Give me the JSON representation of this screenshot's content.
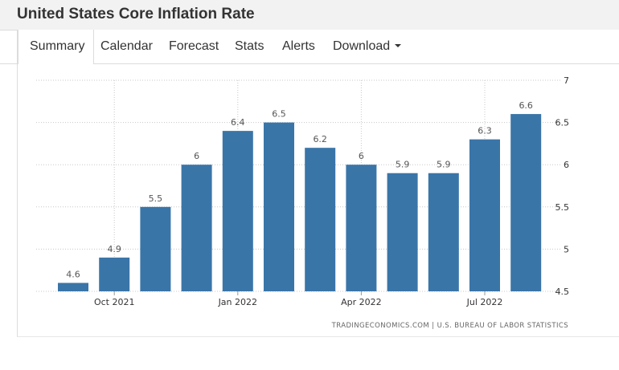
{
  "header": {
    "title": "United States Core Inflation Rate"
  },
  "tabs": [
    {
      "label": "Summary",
      "active": true
    },
    {
      "label": "Calendar",
      "active": false
    },
    {
      "label": "Forecast",
      "active": false
    },
    {
      "label": "Stats",
      "active": false
    },
    {
      "label": "Alerts",
      "active": false
    },
    {
      "label": "Download",
      "active": false,
      "has_dropdown": true
    }
  ],
  "source": "TRADINGECONOMICS.COM  |  U.S. BUREAU OF LABOR STATISTICS",
  "colors": {
    "bar": "#3a75a8",
    "grid": "#c8c8c8",
    "label": "#555555"
  },
  "chart_data": {
    "type": "bar",
    "categories": [
      "Sep 2021",
      "Oct 2021",
      "Nov 2021",
      "Dec 2021",
      "Jan 2022",
      "Feb 2022",
      "Mar 2022",
      "Apr 2022",
      "May 2022",
      "Jun 2022",
      "Jul 2022",
      "Aug 2022"
    ],
    "values": [
      4.6,
      4.9,
      5.5,
      6,
      6.4,
      6.5,
      6.2,
      6,
      5.9,
      5.9,
      6.3,
      6.6
    ],
    "data_labels": [
      "4.6",
      "4.9",
      "5.5",
      "6",
      "6.4",
      "6.5",
      "6.2",
      "6",
      "5.9",
      "5.9",
      "6.3",
      "6.6"
    ],
    "x_tick_labels": [
      "Oct 2021",
      "Jan 2022",
      "Apr 2022",
      "Jul 2022"
    ],
    "y_ticks": [
      4.5,
      5,
      5.5,
      6,
      6.5,
      7
    ],
    "y_tick_labels": [
      "4.5",
      "5",
      "5.5",
      "6",
      "6.5",
      "7"
    ],
    "ylim": [
      4.5,
      7
    ],
    "y_axis_side": "right",
    "grid": true,
    "title": "",
    "xlabel": "",
    "ylabel": ""
  }
}
